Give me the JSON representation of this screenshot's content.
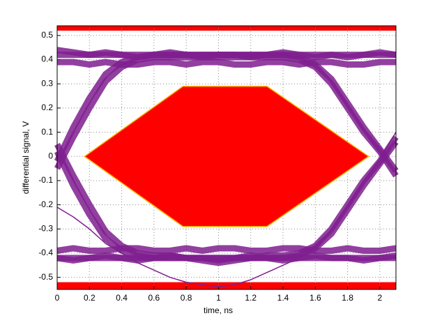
{
  "chart_data": {
    "type": "eye",
    "xlabel": "time, ns",
    "ylabel": "differential signal, V",
    "xlim": [
      0,
      2.1
    ],
    "ylim": [
      -0.55,
      0.54
    ],
    "xticks": [
      0,
      0.2,
      0.4,
      0.6,
      0.8,
      1,
      1.2,
      1.4,
      1.6,
      1.8,
      2
    ],
    "yticks": [
      -0.5,
      -0.4,
      -0.3,
      -0.2,
      -0.1,
      0,
      0.1,
      0.2,
      0.3,
      0.4,
      0.5
    ],
    "grid": true,
    "mask": {
      "color": "#ff0000",
      "edge_color": "#ffb000",
      "x": [
        0.17,
        0.78,
        1.3,
        1.93,
        1.3,
        0.78
      ],
      "y": [
        0,
        0.29,
        0.29,
        0,
        -0.29,
        -0.29
      ]
    },
    "limit_bands": {
      "color": "#ff0000",
      "ranges": [
        [
          0.52,
          0.54
        ],
        [
          -0.55,
          -0.52
        ]
      ]
    },
    "x": [
      0,
      0.1,
      0.2,
      0.3,
      0.4,
      0.5,
      0.6,
      0.7,
      0.8,
      0.9,
      1,
      1.1,
      1.2,
      1.3,
      1.4,
      1.5,
      1.6,
      1.7,
      1.8,
      1.9,
      2,
      2.1
    ],
    "series": [
      {
        "color": "#7f1f8f",
        "values": [
          0.44,
          0.43,
          0.42,
          0.43,
          0.42,
          0.41,
          0.42,
          0.43,
          0.42,
          0.41,
          0.42,
          0.42,
          0.41,
          0.42,
          0.43,
          0.42,
          0.41,
          0.42,
          0.41,
          0.42,
          0.43,
          0.42
        ]
      },
      {
        "color": "#7f1f8f",
        "values": [
          0.39,
          0.39,
          0.38,
          0.39,
          0.38,
          0.38,
          0.39,
          0.39,
          0.38,
          0.39,
          0.39,
          0.38,
          0.38,
          0.39,
          0.39,
          0.38,
          0.39,
          0.39,
          0.38,
          0.38,
          0.39,
          0.39
        ]
      },
      {
        "color": "#7f1f8f",
        "values": [
          -0.42,
          -0.43,
          -0.42,
          -0.41,
          -0.42,
          -0.43,
          -0.42,
          -0.41,
          -0.42,
          -0.42,
          -0.43,
          -0.42,
          -0.41,
          -0.42,
          -0.43,
          -0.42,
          -0.41,
          -0.42,
          -0.42,
          -0.43,
          -0.42,
          -0.41
        ]
      },
      {
        "color": "#7f1f8f",
        "values": [
          -0.39,
          -0.38,
          -0.39,
          -0.39,
          -0.38,
          -0.38,
          -0.39,
          -0.39,
          -0.38,
          -0.39,
          -0.38,
          -0.38,
          -0.39,
          -0.39,
          -0.38,
          -0.38,
          -0.39,
          -0.39,
          -0.38,
          -0.39,
          -0.39,
          -0.38
        ]
      },
      {
        "color": "#7f1f8f",
        "values": [
          -0.05,
          0.08,
          0.2,
          0.31,
          0.37,
          0.4,
          0.41,
          0.41,
          0.41,
          0.41,
          0.41,
          0.41,
          0.41,
          0.41,
          0.41,
          0.4,
          0.37,
          0.3,
          0.2,
          0.1,
          0.02,
          -0.08
        ]
      },
      {
        "color": "#7f1f8f",
        "values": [
          0.05,
          -0.08,
          -0.2,
          -0.31,
          -0.37,
          -0.4,
          -0.41,
          -0.41,
          -0.42,
          -0.43,
          -0.44,
          -0.43,
          -0.42,
          -0.41,
          -0.41,
          -0.4,
          -0.37,
          -0.3,
          -0.2,
          -0.1,
          -0.02,
          0.08
        ]
      },
      {
        "color": "#7f1f8f",
        "values": [
          -0.02,
          0.12,
          0.24,
          0.34,
          0.39,
          0.41,
          0.42,
          0.42,
          0.42,
          0.42,
          0.42,
          0.42,
          0.42,
          0.42,
          0.42,
          0.42,
          0.42,
          0.42,
          0.42,
          0.42,
          0.42,
          0.42
        ]
      },
      {
        "color": "#7f1f8f",
        "values": [
          0.02,
          -0.12,
          -0.24,
          -0.34,
          -0.39,
          -0.41,
          -0.42,
          -0.42,
          -0.42,
          -0.42,
          -0.42,
          -0.42,
          -0.42,
          -0.42,
          -0.42,
          -0.42,
          -0.42,
          -0.42,
          -0.42,
          -0.42,
          -0.42,
          -0.42
        ]
      },
      {
        "color": "#7f1f8f",
        "values": [
          0.42,
          0.42,
          0.42,
          0.42,
          0.42,
          0.42,
          0.42,
          0.42,
          0.42,
          0.42,
          0.42,
          0.42,
          0.42,
          0.42,
          0.42,
          0.41,
          0.38,
          0.32,
          0.22,
          0.12,
          0.03,
          -0.06
        ]
      },
      {
        "color": "#7f1f8f",
        "values": [
          -0.42,
          -0.42,
          -0.42,
          -0.42,
          -0.42,
          -0.42,
          -0.42,
          -0.42,
          -0.42,
          -0.42,
          -0.42,
          -0.42,
          -0.42,
          -0.42,
          -0.42,
          -0.41,
          -0.38,
          -0.32,
          -0.22,
          -0.12,
          -0.03,
          0.06
        ]
      },
      {
        "color": "#7f1f8f",
        "values": [
          -0.21,
          -0.25,
          -0.3,
          -0.36,
          -0.4,
          -0.44,
          -0.47,
          -0.5,
          -0.52,
          -0.53,
          -0.54,
          -0.53,
          -0.51,
          -0.48,
          -0.45,
          -0.42,
          -0.38,
          -0.3,
          -0.2,
          -0.1,
          -0.01,
          0.1
        ]
      }
    ]
  }
}
